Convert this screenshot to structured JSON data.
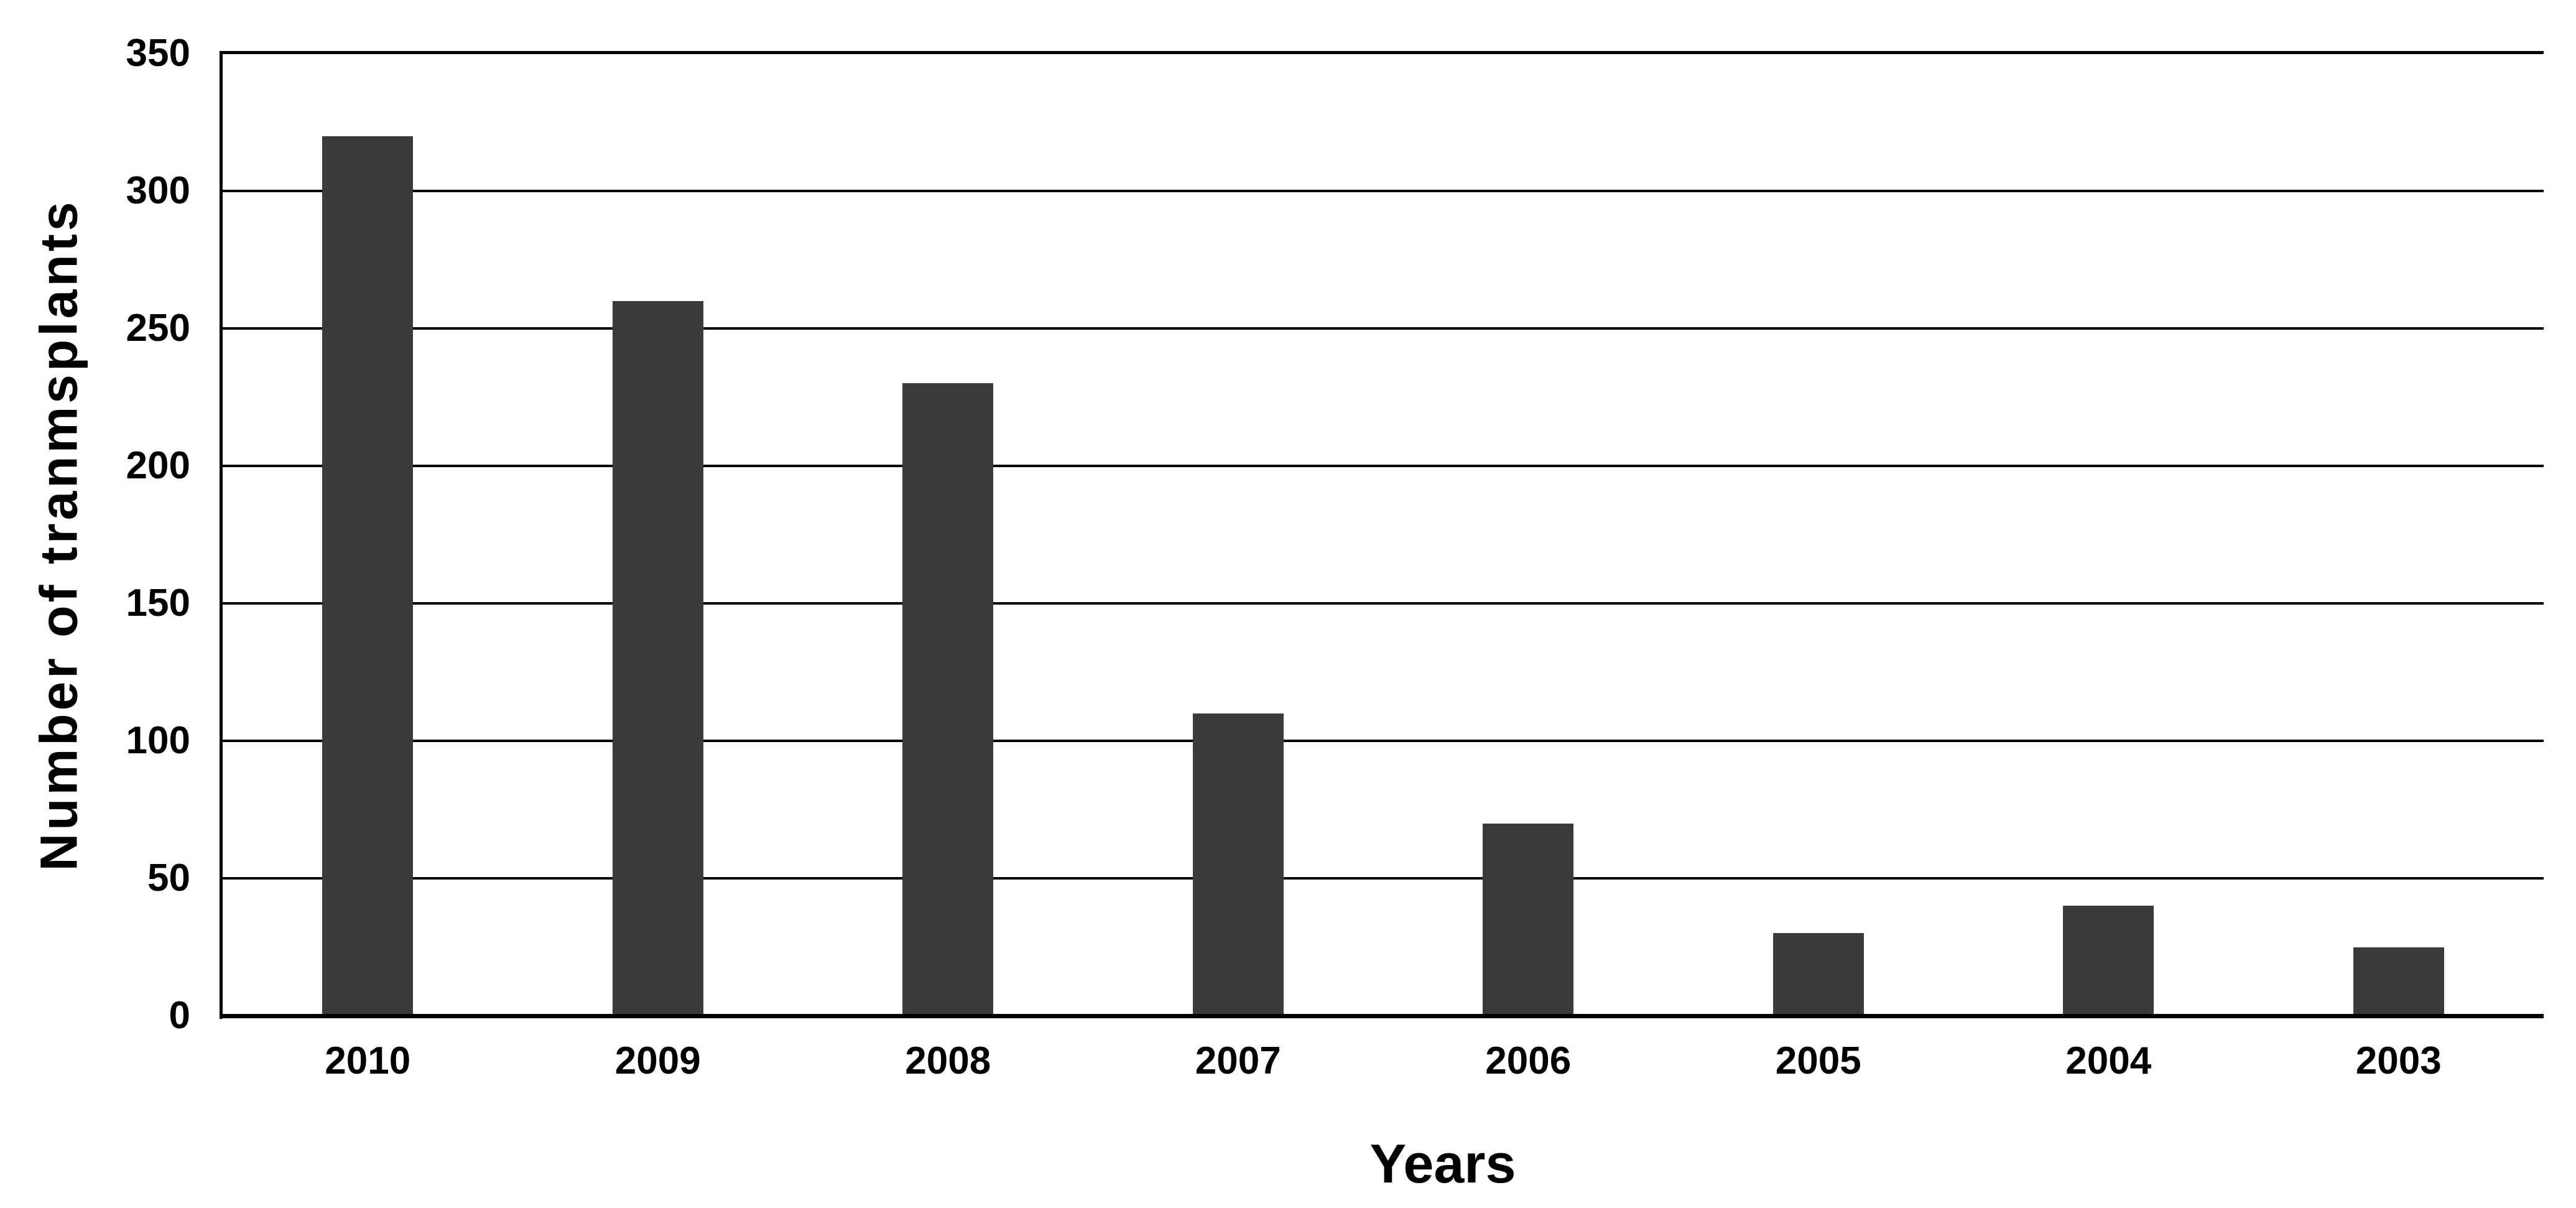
{
  "chart_data": {
    "type": "bar",
    "title": "",
    "ylabel": "Number of tranmsplants",
    "xlabel": "Years",
    "categories": [
      "2010",
      "2009",
      "2008",
      "2007",
      "2006",
      "2005",
      "2004",
      "2003"
    ],
    "values": [
      320,
      260,
      230,
      110,
      70,
      30,
      40,
      25
    ],
    "y_ticks": [
      350,
      300,
      250,
      200,
      150,
      100,
      50,
      0
    ],
    "ylim": [
      0,
      350
    ],
    "grid": "horizontal",
    "legend_position": "none",
    "bar_color": "#3a3a3a",
    "axis_color": "#000000",
    "background_color": "#ffffff",
    "tick_label_color": "#000000"
  }
}
